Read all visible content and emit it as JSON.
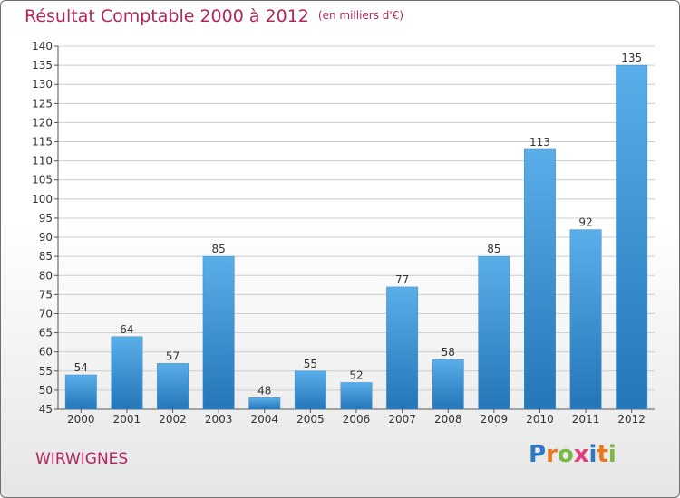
{
  "title": "Résultat Comptable 2000 à 2012",
  "subtitle": "(en milliers d'€)",
  "commune": "WIRWIGNES",
  "logo": {
    "letters": [
      "P",
      "r",
      "o",
      "x",
      "i",
      "t",
      "i"
    ],
    "colors": [
      "#2f78c4",
      "#e8791f",
      "#79b842",
      "#e23d7c",
      "#2f78c4",
      "#e8791f",
      "#79b842"
    ]
  },
  "colors": {
    "bar_top": "#5aaee8",
    "bar_bottom": "#2476b8",
    "title": "#b4265a",
    "grid": "#cccccc"
  },
  "chart_data": {
    "type": "bar",
    "title": "Résultat Comptable 2000 à 2012",
    "subtitle": "(en milliers d'€)",
    "categories": [
      "2000",
      "2001",
      "2002",
      "2003",
      "2004",
      "2005",
      "2006",
      "2007",
      "2008",
      "2009",
      "2010",
      "2011",
      "2012"
    ],
    "values": [
      54,
      64,
      57,
      85,
      48,
      55,
      52,
      77,
      58,
      85,
      113,
      92,
      135
    ],
    "ylim": [
      45,
      140
    ],
    "ytick_step": 5,
    "grid": true,
    "xlabel": "",
    "ylabel": ""
  }
}
